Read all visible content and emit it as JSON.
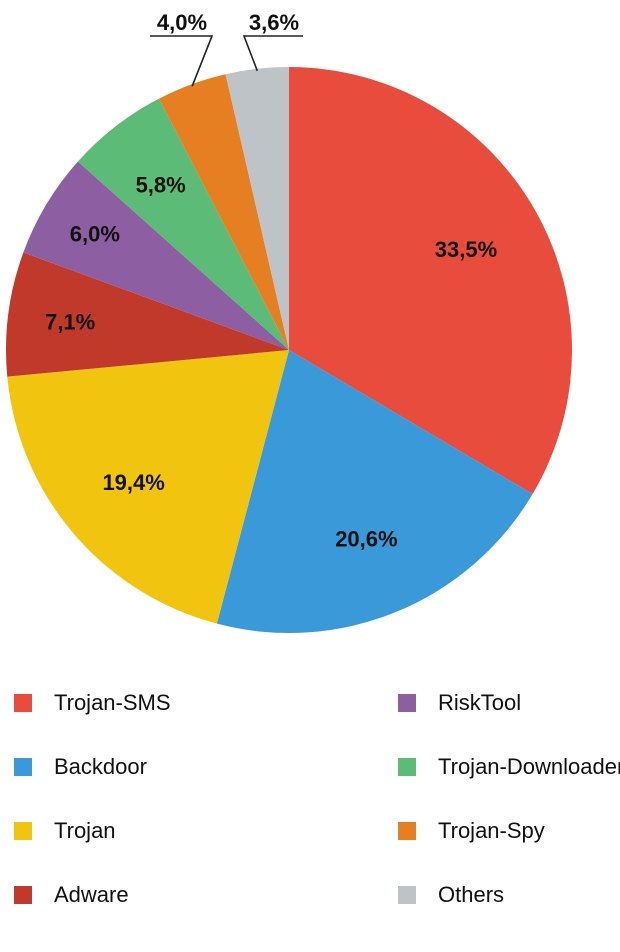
{
  "chart_data": {
    "type": "pie",
    "title": "",
    "categories": [
      "Trojan-SMS",
      "Backdoor",
      "Trojan",
      "Adware",
      "RiskTool",
      "Trojan-Downloader",
      "Trojan-Spy",
      "Others"
    ],
    "values": [
      33.5,
      20.6,
      19.4,
      7.1,
      6.0,
      5.8,
      4.0,
      3.6
    ],
    "value_labels": [
      "33,5%",
      "20,6%",
      "19,4%",
      "7,1%",
      "6,0%",
      "5,8%",
      "4,0%",
      "3,6%"
    ],
    "colors": [
      "#e74c3c",
      "#3a9ad9",
      "#f1c40f",
      "#c0392b",
      "#8e5ea2",
      "#5cbb76",
      "#e67e22",
      "#bdc3c7"
    ],
    "start_angle": "12 o'clock",
    "direction": "clockwise",
    "legend_placement": "bottom, two columns"
  }
}
